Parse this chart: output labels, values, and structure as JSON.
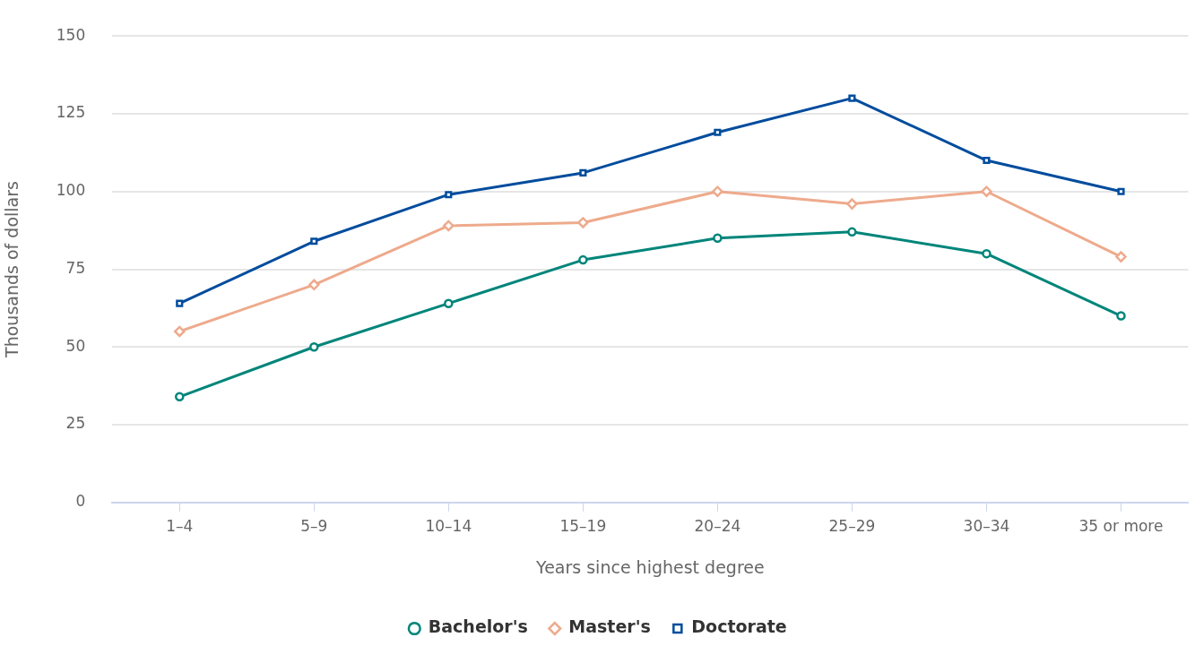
{
  "chart_data": {
    "type": "line",
    "xlabel": "Years since highest degree",
    "ylabel": "Thousands of dollars",
    "categories": [
      "1–4",
      "5–9",
      "10–14",
      "15–19",
      "20–24",
      "25–29",
      "30–34",
      "35 or more"
    ],
    "series": [
      {
        "name": "Bachelor's",
        "color": "#00857a",
        "marker": "circle",
        "values": [
          34,
          50,
          64,
          78,
          85,
          87,
          80,
          60
        ]
      },
      {
        "name": "Master's",
        "color": "#eeaa8c",
        "marker": "diamond",
        "values": [
          55,
          70,
          89,
          90,
          100,
          96,
          100,
          79
        ]
      },
      {
        "name": "Doctorate",
        "color": "#004c9d",
        "marker": "square",
        "values": [
          64,
          84,
          99,
          106,
          119,
          130,
          110,
          100
        ]
      }
    ],
    "ylim": [
      0,
      150
    ],
    "yticks": [
      0,
      25,
      50,
      75,
      100,
      125,
      150
    ],
    "grid": "y",
    "legend": "bottom",
    "line_style": "solid"
  }
}
